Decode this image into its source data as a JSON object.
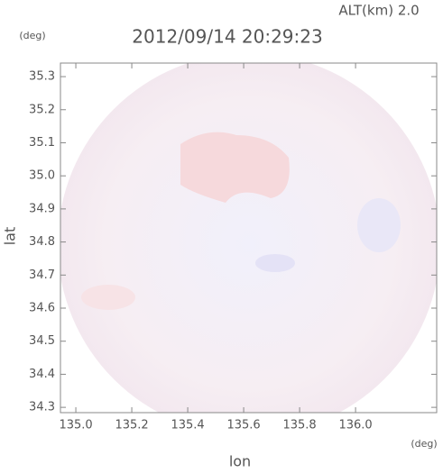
{
  "chart_data": {
    "type": "radar-image",
    "title": "2012/09/14 20:29:23",
    "subtitle": "ALT(km) 2.0",
    "y_unit": "(deg)",
    "x_unit": "(deg)",
    "x_label": "lon",
    "y_label": "lat",
    "xlim": [
      134.945,
      136.29
    ],
    "ylim": [
      34.284,
      35.341
    ],
    "xticks": [
      {
        "value": 135.0,
        "label": "135.0"
      },
      135.2,
      135.4,
      135.6,
      135.8,
      {
        "value": 136.0,
        "label": "136.0"
      }
    ],
    "yticks": [
      34.3,
      34.4,
      34.5,
      34.6,
      34.7,
      34.8,
      34.9,
      {
        "value": 35.0,
        "label": "35.0"
      },
      35.1,
      35.2,
      35.3
    ]
  }
}
